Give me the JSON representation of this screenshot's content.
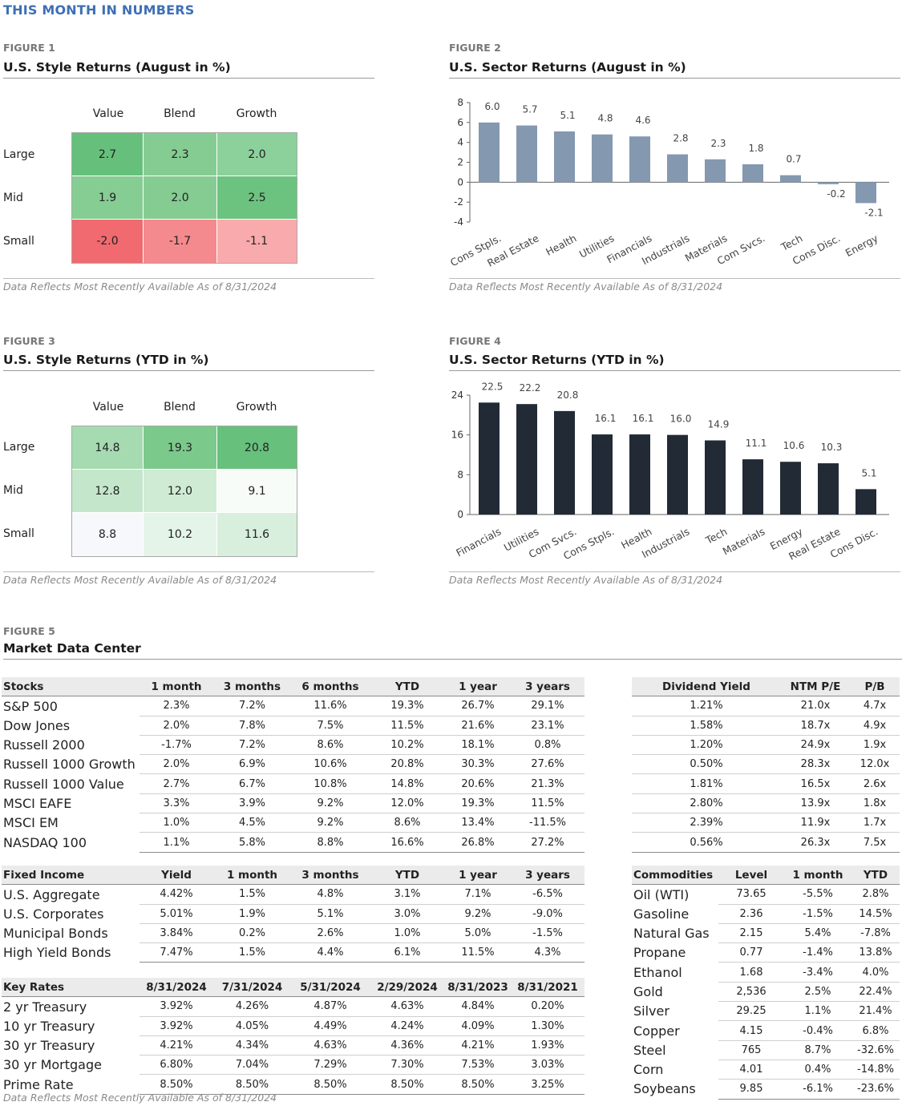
{
  "page_title": "THIS MONTH IN NUMBERS",
  "data_note": "Data Reflects Most Recently Available As of 8/31/2024",
  "fig1": {
    "label": "FIGURE 1",
    "title": "U.S. Style Returns (August in %)",
    "columns": [
      "Value",
      "Blend",
      "Growth"
    ],
    "rows": [
      "Large",
      "Mid",
      "Small"
    ],
    "values": [
      [
        "2.7",
        "2.3",
        "2.0"
      ],
      [
        "1.9",
        "2.0",
        "2.5"
      ],
      [
        "-2.0",
        "-1.7",
        "-1.1"
      ]
    ],
    "colors": [
      [
        "#66c07b",
        "#85cc92",
        "#8cd09b"
      ],
      [
        "#86cd94",
        "#85cc92",
        "#6cc37f"
      ],
      [
        "#f06a6f",
        "#f48a8e",
        "#f9aaac"
      ]
    ]
  },
  "fig3": {
    "label": "FIGURE 3",
    "title": "U.S. Style Returns (YTD in %)",
    "columns": [
      "Value",
      "Blend",
      "Growth"
    ],
    "rows": [
      "Large",
      "Mid",
      "Small"
    ],
    "values": [
      [
        "14.8",
        "19.3",
        "20.8"
      ],
      [
        "12.8",
        "12.0",
        "9.1"
      ],
      [
        "8.8",
        "10.2",
        "11.6"
      ]
    ],
    "colors": [
      [
        "#a6dab1",
        "#7cc98c",
        "#67c07b"
      ],
      [
        "#c4e7cb",
        "#cfeBd4",
        "#f8fcf9"
      ],
      [
        "#f7f8fb",
        "#e5f4e8",
        "#d7efdc"
      ]
    ]
  },
  "fig2": {
    "label": "FIGURE 2",
    "title": "U.S. Sector Returns (August in %)",
    "chart_data": {
      "type": "bar",
      "title": "U.S. Sector Returns (August in %)",
      "categories": [
        "Cons Stpls.",
        "Real Estate",
        "Health",
        "Utilities",
        "Financials",
        "Industrials",
        "Materials",
        "Com Svcs.",
        "Tech",
        "Cons Disc.",
        "Energy"
      ],
      "values": [
        6.0,
        5.7,
        5.1,
        4.8,
        4.6,
        2.8,
        2.3,
        1.8,
        0.7,
        -0.2,
        -2.1
      ],
      "ylim": [
        -4,
        8
      ],
      "yticks": [
        8,
        6,
        4,
        2,
        0,
        -2,
        -4
      ],
      "bar_color": "#8498b0"
    }
  },
  "fig4": {
    "label": "FIGURE 4",
    "title": "U.S. Sector Returns (YTD in %)",
    "chart_data": {
      "type": "bar",
      "title": "U.S. Sector Returns (YTD in %)",
      "categories": [
        "Financials",
        "Utilities",
        "Com Svcs.",
        "Cons Stpls.",
        "Health",
        "Industrials",
        "Tech",
        "Materials",
        "Energy",
        "Real Estate",
        "Cons Disc."
      ],
      "values": [
        22.5,
        22.2,
        20.8,
        16.1,
        16.1,
        16.0,
        14.9,
        11.1,
        10.6,
        10.3,
        5.1
      ],
      "ylim": [
        0,
        24
      ],
      "yticks": [
        24,
        16,
        8,
        0
      ],
      "bar_color": "#222a36"
    }
  },
  "fig5": {
    "label": "FIGURE 5",
    "title": "Market Data Center",
    "stocks": {
      "headers": [
        "Stocks",
        "1 month",
        "3 months",
        "6 months",
        "YTD",
        "1 year",
        "3 years"
      ],
      "rows": [
        [
          "S&P 500",
          "2.3%",
          "7.2%",
          "11.6%",
          "19.3%",
          "26.7%",
          "29.1%"
        ],
        [
          "Dow Jones",
          "2.0%",
          "7.8%",
          "7.5%",
          "11.5%",
          "21.6%",
          "23.1%"
        ],
        [
          "Russell 2000",
          "-1.7%",
          "7.2%",
          "8.6%",
          "10.2%",
          "18.1%",
          "0.8%"
        ],
        [
          "Russell 1000 Growth",
          "2.0%",
          "6.9%",
          "10.6%",
          "20.8%",
          "30.3%",
          "27.6%"
        ],
        [
          "Russell 1000 Value",
          "2.7%",
          "6.7%",
          "10.8%",
          "14.8%",
          "20.6%",
          "21.3%"
        ],
        [
          "MSCI EAFE",
          "3.3%",
          "3.9%",
          "9.2%",
          "12.0%",
          "19.3%",
          "11.5%"
        ],
        [
          "MSCI EM",
          "1.0%",
          "4.5%",
          "9.2%",
          "8.6%",
          "13.4%",
          "-11.5%"
        ],
        [
          "NASDAQ 100",
          "1.1%",
          "5.8%",
          "8.8%",
          "16.6%",
          "26.8%",
          "27.2%"
        ]
      ]
    },
    "valuation": {
      "headers": [
        "Dividend Yield",
        "NTM P/E",
        "P/B"
      ],
      "rows": [
        [
          "1.21%",
          "21.0x",
          "4.7x"
        ],
        [
          "1.58%",
          "18.7x",
          "4.9x"
        ],
        [
          "1.20%",
          "24.9x",
          "1.9x"
        ],
        [
          "0.50%",
          "28.3x",
          "12.0x"
        ],
        [
          "1.81%",
          "16.5x",
          "2.6x"
        ],
        [
          "2.80%",
          "13.9x",
          "1.8x"
        ],
        [
          "2.39%",
          "11.9x",
          "1.7x"
        ],
        [
          "0.56%",
          "26.3x",
          "7.5x"
        ]
      ]
    },
    "fixed_income": {
      "headers": [
        "Fixed Income",
        "Yield",
        "1 month",
        "3 months",
        "YTD",
        "1 year",
        "3 years"
      ],
      "rows": [
        [
          "U.S. Aggregate",
          "4.42%",
          "1.5%",
          "4.8%",
          "3.1%",
          "7.1%",
          "-6.5%"
        ],
        [
          "U.S. Corporates",
          "5.01%",
          "1.9%",
          "5.1%",
          "3.0%",
          "9.2%",
          "-9.0%"
        ],
        [
          "Municipal Bonds",
          "3.84%",
          "0.2%",
          "2.6%",
          "1.0%",
          "5.0%",
          "-1.5%"
        ],
        [
          "High Yield Bonds",
          "7.47%",
          "1.5%",
          "4.4%",
          "6.1%",
          "11.5%",
          "4.3%"
        ]
      ]
    },
    "key_rates": {
      "headers": [
        "Key Rates",
        "8/31/2024",
        "7/31/2024",
        "5/31/2024",
        "2/29/2024",
        "8/31/2023",
        "8/31/2021"
      ],
      "rows": [
        [
          "2 yr Treasury",
          "3.92%",
          "4.26%",
          "4.87%",
          "4.63%",
          "4.84%",
          "0.20%"
        ],
        [
          "10 yr Treasury",
          "3.92%",
          "4.05%",
          "4.49%",
          "4.24%",
          "4.09%",
          "1.30%"
        ],
        [
          "30 yr Treasury",
          "4.21%",
          "4.34%",
          "4.63%",
          "4.36%",
          "4.21%",
          "1.93%"
        ],
        [
          "30 yr Mortgage",
          "6.80%",
          "7.04%",
          "7.29%",
          "7.30%",
          "7.53%",
          "3.03%"
        ],
        [
          "Prime Rate",
          "8.50%",
          "8.50%",
          "8.50%",
          "8.50%",
          "8.50%",
          "3.25%"
        ]
      ]
    },
    "commodities": {
      "headers": [
        "Commodities",
        "Level",
        "1 month",
        "YTD"
      ],
      "rows": [
        [
          "Oil (WTI)",
          "73.65",
          "-5.5%",
          "2.8%"
        ],
        [
          "Gasoline",
          "2.36",
          "-1.5%",
          "14.5%"
        ],
        [
          "Natural Gas",
          "2.15",
          "5.4%",
          "-7.8%"
        ],
        [
          "Propane",
          "0.77",
          "-1.4%",
          "13.8%"
        ],
        [
          "Ethanol",
          "1.68",
          "-3.4%",
          "4.0%"
        ],
        [
          "Gold",
          "2,536",
          "2.5%",
          "22.4%"
        ],
        [
          "Silver",
          "29.25",
          "1.1%",
          "21.4%"
        ],
        [
          "Copper",
          "4.15",
          "-0.4%",
          "6.8%"
        ],
        [
          "Steel",
          "765",
          "8.7%",
          "-32.6%"
        ],
        [
          "Corn",
          "4.01",
          "0.4%",
          "-14.8%"
        ],
        [
          "Soybeans",
          "9.85",
          "-6.1%",
          "-23.6%"
        ]
      ]
    }
  }
}
